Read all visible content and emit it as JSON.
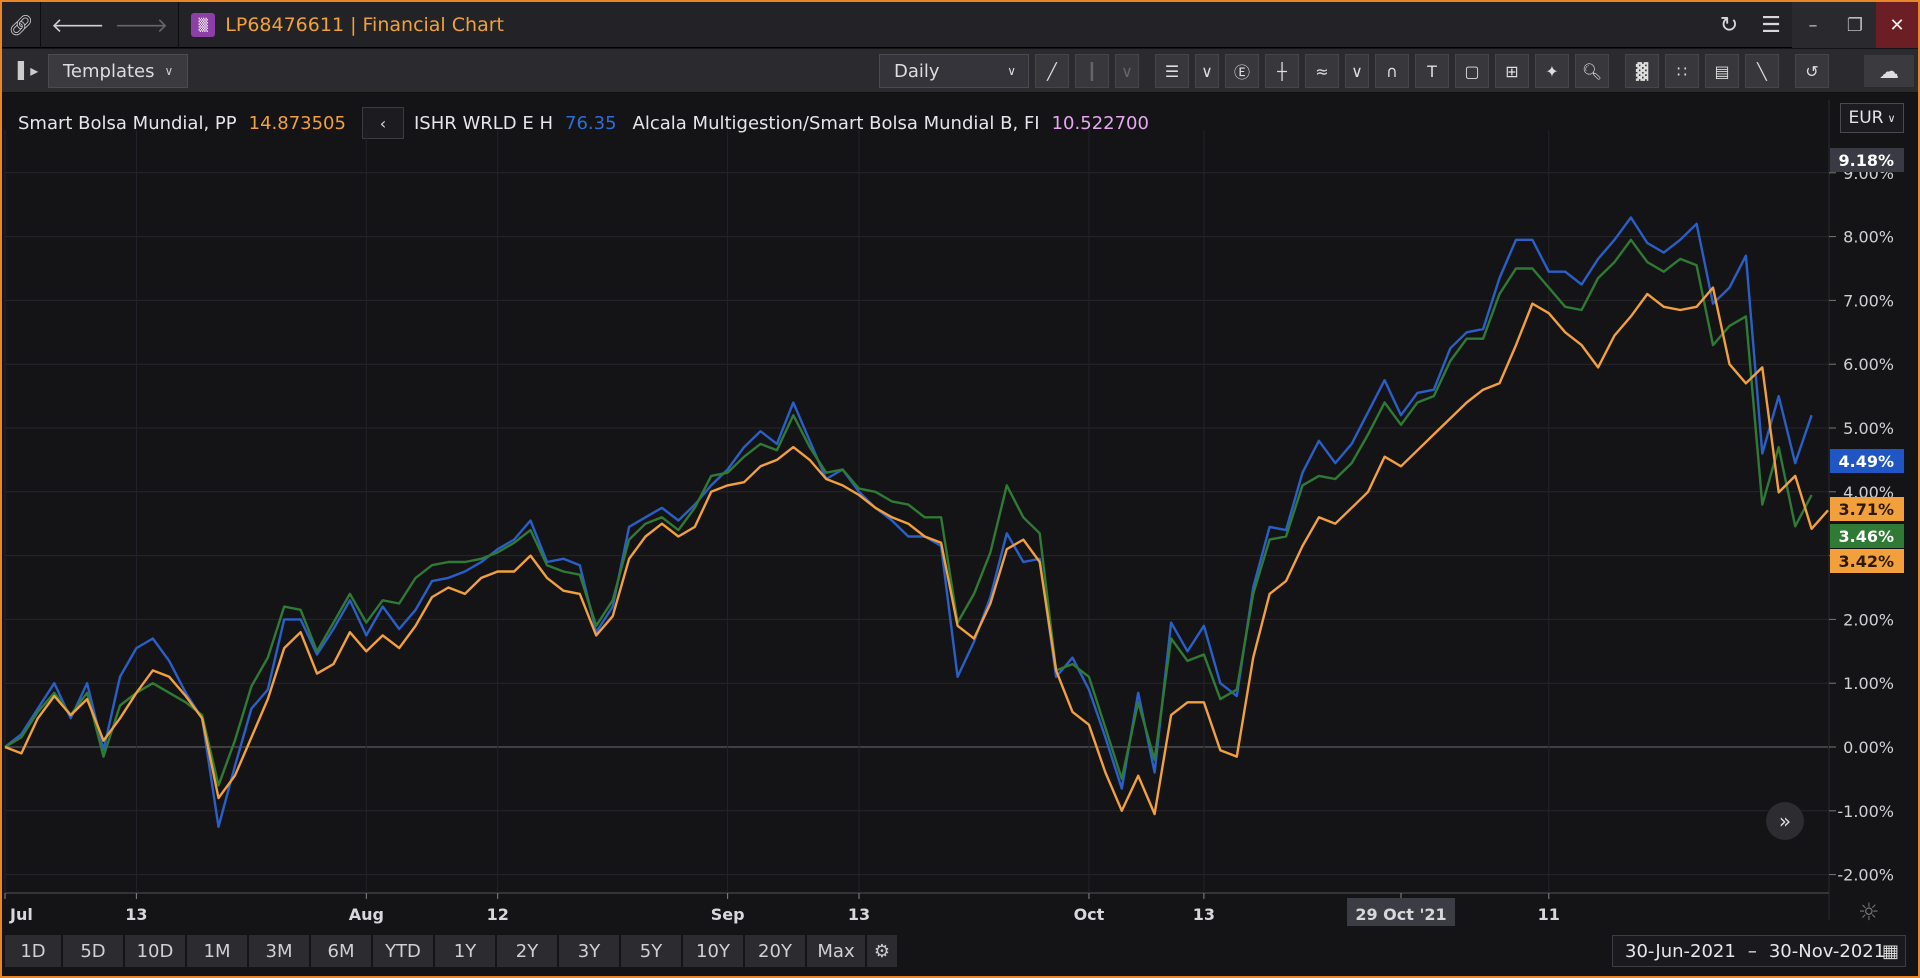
{
  "window": {
    "title_code": "LP68476611",
    "title_sep": " | ",
    "title_name": "Financial Chart"
  },
  "toolbar": {
    "templates_label": "Templates",
    "interval_label": "Daily"
  },
  "legend": [
    {
      "name": "Smart Bolsa Mundial, PP",
      "value": "14.873505",
      "color": "#f2a03c"
    },
    {
      "name": "ISHR WRLD E H",
      "value": "76.35",
      "color": "#2e6ed8"
    },
    {
      "name": "Alcala Multigestion/Smart Bolsa Mundial B, FI",
      "value": "10.522700",
      "color": "#e7a6f0"
    }
  ],
  "currency": "EUR",
  "range_buttons": [
    "1D",
    "5D",
    "10D",
    "1M",
    "3M",
    "6M",
    "YTD",
    "1Y",
    "2Y",
    "3Y",
    "5Y",
    "10Y",
    "20Y",
    "Max"
  ],
  "date_range": {
    "from": "30-Jun-2021",
    "sep": "–",
    "to": "30-Nov-2021"
  },
  "chart_data": {
    "type": "line",
    "y_unit": "%",
    "ylim": [
      -2.2,
      9.5
    ],
    "y_ticks": [
      "9.00%",
      "8.00%",
      "7.00%",
      "6.00%",
      "5.00%",
      "4.00%",
      "3.00%",
      "2.00%",
      "1.00%",
      "0.00%",
      "-1.00%",
      "-2.00%"
    ],
    "y_tick_values": [
      9,
      8,
      7,
      6,
      5,
      4,
      3,
      2,
      1,
      0,
      -1,
      -2
    ],
    "x_ticks": [
      {
        "label": "Jul",
        "index": 0
      },
      {
        "label": "13",
        "index": 8
      },
      {
        "label": "Aug",
        "index": 22
      },
      {
        "label": "12",
        "index": 30
      },
      {
        "label": "Sep",
        "index": 44
      },
      {
        "label": "13",
        "index": 52
      },
      {
        "label": "Oct",
        "index": 66
      },
      {
        "label": "13",
        "index": 73
      },
      {
        "label": "29 Oct '21",
        "index": 85,
        "highlight": true
      },
      {
        "label": "11",
        "index": 94
      }
    ],
    "grid": true,
    "zero_line": true,
    "badges": [
      {
        "label": "9.18%",
        "value": 9.18,
        "color": "#3a3a44"
      },
      {
        "label": "4.49%",
        "value": 4.49,
        "color": "#1f56c4"
      },
      {
        "label": "3.71%",
        "value": 3.71,
        "color": "#f2a03c"
      },
      {
        "label": "3.46%",
        "value": 3.46,
        "color": "#2f7a34"
      },
      {
        "label": "3.42%",
        "value": 3.42,
        "color": "#f2a03c"
      }
    ],
    "series": [
      {
        "name": "ISHR WRLD E H",
        "color": "#2a5fc8",
        "values": [
          0,
          0.2,
          0.6,
          1.0,
          0.45,
          1.0,
          -0.05,
          1.1,
          1.55,
          1.7,
          1.35,
          0.85,
          0.45,
          -1.25,
          -0.3,
          0.6,
          0.9,
          2.0,
          2.0,
          1.45,
          1.85,
          2.3,
          1.75,
          2.2,
          1.85,
          2.15,
          2.6,
          2.65,
          2.75,
          2.9,
          3.1,
          3.25,
          3.55,
          2.9,
          2.95,
          2.85,
          1.8,
          2.2,
          3.45,
          3.6,
          3.75,
          3.55,
          3.8,
          4.1,
          4.35,
          4.7,
          4.95,
          4.75,
          5.4,
          4.8,
          4.2,
          4.35,
          4.0,
          3.75,
          3.55,
          3.3,
          3.3,
          3.15,
          1.1,
          1.65,
          2.35,
          3.35,
          2.9,
          2.95,
          1.1,
          1.4,
          0.9,
          0.15,
          -0.65,
          0.85,
          -0.4,
          1.95,
          1.5,
          1.9,
          1.0,
          0.8,
          2.5,
          3.45,
          3.4,
          4.3,
          4.8,
          4.45,
          4.75,
          5.25,
          5.75,
          5.2,
          5.55,
          5.6,
          6.25,
          6.5,
          6.55,
          7.35,
          7.95,
          7.95,
          7.45,
          7.45,
          7.25,
          7.65,
          7.95,
          8.3,
          7.9,
          7.75,
          7.95,
          8.2,
          6.95,
          7.2,
          7.7,
          4.6,
          5.5,
          4.45,
          5.2
        ]
      },
      {
        "name": "",
        "color": "#2f7a34",
        "values": [
          0,
          0.15,
          0.55,
          0.85,
          0.5,
          0.85,
          -0.15,
          0.65,
          0.85,
          1.0,
          0.85,
          0.7,
          0.5,
          -0.6,
          0.1,
          0.95,
          1.4,
          2.2,
          2.15,
          1.5,
          1.95,
          2.4,
          1.95,
          2.3,
          2.25,
          2.65,
          2.85,
          2.9,
          2.9,
          2.95,
          3.05,
          3.2,
          3.4,
          2.85,
          2.75,
          2.7,
          1.9,
          2.3,
          3.25,
          3.5,
          3.6,
          3.4,
          3.75,
          4.25,
          4.3,
          4.55,
          4.75,
          4.65,
          5.2,
          4.7,
          4.3,
          4.35,
          4.05,
          4.0,
          3.85,
          3.8,
          3.6,
          3.6,
          1.95,
          2.4,
          3.05,
          4.1,
          3.6,
          3.35,
          1.2,
          1.3,
          1.1,
          0.3,
          -0.5,
          0.7,
          -0.2,
          1.7,
          1.35,
          1.45,
          0.75,
          0.9,
          2.4,
          3.25,
          3.3,
          4.1,
          4.25,
          4.2,
          4.45,
          4.9,
          5.4,
          5.05,
          5.4,
          5.5,
          6.05,
          6.4,
          6.4,
          7.1,
          7.5,
          7.5,
          7.2,
          6.9,
          6.85,
          7.35,
          7.6,
          7.95,
          7.6,
          7.45,
          7.65,
          7.55,
          6.3,
          6.6,
          6.75,
          3.8,
          4.7,
          3.46,
          3.95
        ]
      },
      {
        "name": "Smart Bolsa Mundial, PP",
        "color": "#f2a03c",
        "values": [
          0,
          -0.1,
          0.45,
          0.8,
          0.5,
          0.75,
          0.1,
          0.45,
          0.85,
          1.2,
          1.1,
          0.8,
          0.45,
          -0.8,
          -0.45,
          0.15,
          0.75,
          1.55,
          1.8,
          1.15,
          1.3,
          1.8,
          1.5,
          1.75,
          1.55,
          1.9,
          2.35,
          2.5,
          2.4,
          2.65,
          2.75,
          2.75,
          3.0,
          2.65,
          2.45,
          2.4,
          1.75,
          2.05,
          2.95,
          3.3,
          3.5,
          3.3,
          3.45,
          4.0,
          4.1,
          4.15,
          4.4,
          4.5,
          4.7,
          4.5,
          4.2,
          4.1,
          3.95,
          3.75,
          3.6,
          3.5,
          3.3,
          3.2,
          1.9,
          1.7,
          2.25,
          3.1,
          3.25,
          2.9,
          1.2,
          0.55,
          0.35,
          -0.4,
          -1.0,
          -0.45,
          -1.05,
          0.5,
          0.7,
          0.7,
          -0.05,
          -0.15,
          1.4,
          2.4,
          2.6,
          3.15,
          3.6,
          3.5,
          3.75,
          4.0,
          4.55,
          4.4,
          4.65,
          4.9,
          5.15,
          5.4,
          5.6,
          5.7,
          6.3,
          6.95,
          6.8,
          6.5,
          6.3,
          5.95,
          6.45,
          6.75,
          7.1,
          6.9,
          6.85,
          6.9,
          7.2,
          6.0,
          5.7,
          5.95,
          3.99,
          4.25,
          3.42,
          3.71
        ]
      }
    ]
  }
}
